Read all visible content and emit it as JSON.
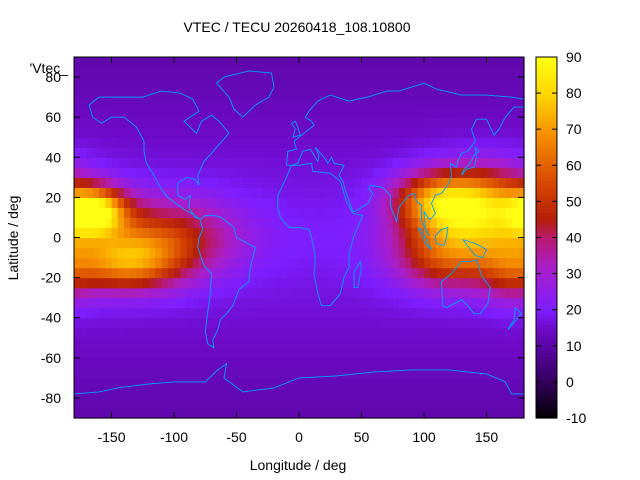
{
  "chart_data": {
    "type": "heatmap",
    "title": "VTEC / TECU 20260418_108.10800",
    "xlabel": "Longitude / deg",
    "ylabel": "Latitude / deg",
    "key_label": "'Vtec_",
    "xlim": [
      -180,
      180
    ],
    "ylim": [
      -90,
      90
    ],
    "zlim": [
      -10,
      90
    ],
    "x_ticks": [
      -150,
      -100,
      -50,
      0,
      50,
      100,
      150
    ],
    "y_ticks": [
      -80,
      -60,
      -40,
      -20,
      0,
      20,
      40,
      60,
      80
    ],
    "colorbar_ticks": [
      -10,
      0,
      10,
      20,
      30,
      40,
      50,
      60,
      70,
      80,
      90
    ],
    "grid": false,
    "colormap": "gnuplot-hot-black-purple-red-yellow",
    "coastline_color": "#00a0ff",
    "features": [
      {
        "lon": -165,
        "lat": 13,
        "sigma_lon": 18,
        "sigma_lat": 8,
        "amp": 65
      },
      {
        "lon": -140,
        "lat": -12,
        "sigma_lon": 30,
        "sigma_lat": 10,
        "amp": 40
      },
      {
        "lon": -110,
        "lat": 0,
        "sigma_lon": 40,
        "sigma_lat": 14,
        "amp": 30
      },
      {
        "lon": 110,
        "lat": 18,
        "sigma_lon": 25,
        "sigma_lat": 10,
        "amp": 45
      },
      {
        "lon": 150,
        "lat": 15,
        "sigma_lon": 30,
        "sigma_lat": 14,
        "amp": 50
      },
      {
        "lon": 120,
        "lat": -8,
        "sigma_lon": 30,
        "sigma_lat": 12,
        "amp": 38
      },
      {
        "lon": 170,
        "lat": -15,
        "sigma_lon": 18,
        "sigma_lat": 12,
        "amp": 22
      }
    ],
    "background_value": 20
  }
}
